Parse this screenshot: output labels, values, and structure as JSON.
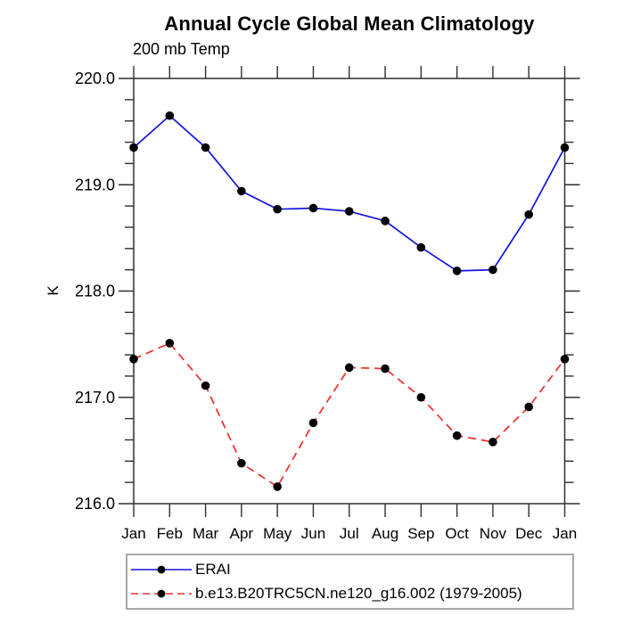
{
  "chart_data": {
    "type": "line",
    "title": "Annual Cycle Global Mean Climatology",
    "subtitle": "200 mb Temp",
    "ylabel": "K",
    "categories": [
      "Jan",
      "Feb",
      "Mar",
      "Apr",
      "May",
      "Jun",
      "Jul",
      "Aug",
      "Sep",
      "Oct",
      "Nov",
      "Dec",
      "Jan"
    ],
    "ylim": [
      216.0,
      220.0
    ],
    "ytick_labels": [
      "216.0",
      "217.0",
      "218.0",
      "219.0",
      "220.0"
    ],
    "minor_tick_interval": 0.2,
    "grid": false,
    "legend_position": "bottom-left",
    "axis_color": "#2f2f2f",
    "marker_shape": "filled-circle",
    "series": [
      {
        "name": "ERAI",
        "color": "#1414dd",
        "line_style": "solid",
        "marker_color": "#000000",
        "values": [
          219.35,
          219.65,
          219.35,
          218.94,
          218.77,
          218.78,
          218.75,
          218.66,
          218.41,
          218.19,
          218.2,
          218.72,
          219.35
        ]
      },
      {
        "name": "b.e13.B20TRC5CN.ne120_g16.002 (1979-2005)",
        "color": "#f22b2b",
        "line_style": "dashed",
        "marker_color": "#000000",
        "values": [
          217.36,
          217.51,
          217.11,
          216.38,
          216.16,
          216.76,
          217.28,
          217.27,
          217.0,
          216.64,
          216.58,
          216.91,
          217.36
        ]
      }
    ]
  }
}
